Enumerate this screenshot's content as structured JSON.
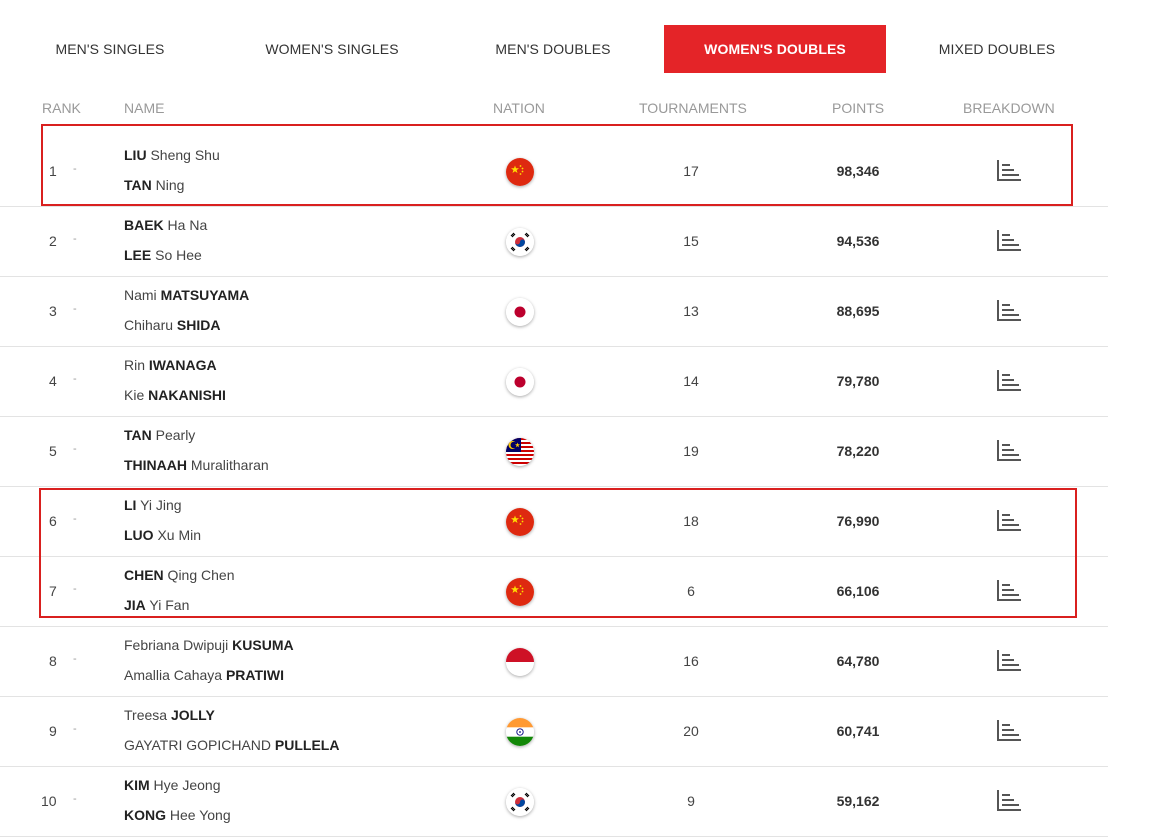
{
  "tabs": [
    {
      "label": "MEN'S SINGLES",
      "active": false
    },
    {
      "label": "WOMEN'S SINGLES",
      "active": false
    },
    {
      "label": "MEN'S DOUBLES",
      "active": false
    },
    {
      "label": "WOMEN'S DOUBLES",
      "active": true
    },
    {
      "label": "MIXED DOUBLES",
      "active": false
    }
  ],
  "columns": {
    "rank": "RANK",
    "name": "NAME",
    "nation": "NATION",
    "tournaments": "TOURNAMENTS",
    "points": "POINTS",
    "breakdown": "BREAKDOWN"
  },
  "colors": {
    "accent": "#e42428",
    "highlight": "#d9201f"
  },
  "rows": [
    {
      "rank": "1",
      "change": "-",
      "nation_icon": "china-flag-icon",
      "tournaments": "17",
      "points": "98,346",
      "players": [
        {
          "pre": "",
          "bold": "LIU",
          "post": " Sheng Shu"
        },
        {
          "pre": "",
          "bold": "TAN",
          "post": " Ning"
        }
      ]
    },
    {
      "rank": "2",
      "change": "-",
      "nation_icon": "korea-flag-icon",
      "tournaments": "15",
      "points": "94,536",
      "players": [
        {
          "pre": "",
          "bold": "BAEK",
          "post": " Ha Na"
        },
        {
          "pre": "",
          "bold": "LEE",
          "post": " So Hee"
        }
      ]
    },
    {
      "rank": "3",
      "change": "-",
      "nation_icon": "japan-flag-icon",
      "tournaments": "13",
      "points": "88,695",
      "players": [
        {
          "pre": "Nami ",
          "bold": "MATSUYAMA",
          "post": ""
        },
        {
          "pre": "Chiharu ",
          "bold": "SHIDA",
          "post": ""
        }
      ]
    },
    {
      "rank": "4",
      "change": "-",
      "nation_icon": "japan-flag-icon",
      "tournaments": "14",
      "points": "79,780",
      "players": [
        {
          "pre": "Rin ",
          "bold": "IWANAGA",
          "post": ""
        },
        {
          "pre": "Kie ",
          "bold": "NAKANISHI",
          "post": ""
        }
      ]
    },
    {
      "rank": "5",
      "change": "-",
      "nation_icon": "malaysia-flag-icon",
      "tournaments": "19",
      "points": "78,220",
      "players": [
        {
          "pre": "",
          "bold": "TAN",
          "post": " Pearly"
        },
        {
          "pre": "",
          "bold": "THINAAH",
          "post": " Muralitharan"
        }
      ]
    },
    {
      "rank": "6",
      "change": "-",
      "nation_icon": "china-flag-icon",
      "tournaments": "18",
      "points": "76,990",
      "players": [
        {
          "pre": "",
          "bold": "LI",
          "post": " Yi Jing"
        },
        {
          "pre": "",
          "bold": "LUO",
          "post": " Xu Min"
        }
      ]
    },
    {
      "rank": "7",
      "change": "-",
      "nation_icon": "china-flag-icon",
      "tournaments": "6",
      "points": "66,106",
      "players": [
        {
          "pre": "",
          "bold": "CHEN",
          "post": " Qing Chen"
        },
        {
          "pre": "",
          "bold": "JIA",
          "post": " Yi Fan"
        }
      ]
    },
    {
      "rank": "8",
      "change": "-",
      "nation_icon": "indonesia-flag-icon",
      "tournaments": "16",
      "points": "64,780",
      "players": [
        {
          "pre": "Febriana Dwipuji ",
          "bold": "KUSUMA",
          "post": ""
        },
        {
          "pre": "Amallia Cahaya ",
          "bold": "PRATIWI",
          "post": ""
        }
      ]
    },
    {
      "rank": "9",
      "change": "-",
      "nation_icon": "india-flag-icon",
      "tournaments": "20",
      "points": "60,741",
      "players": [
        {
          "pre": "Treesa ",
          "bold": "JOLLY",
          "post": ""
        },
        {
          "pre": "GAYATRI GOPICHAND ",
          "bold": "PULLELA",
          "post": ""
        }
      ]
    },
    {
      "rank": "10",
      "change": "-",
      "nation_icon": "korea-flag-icon",
      "tournaments": "9",
      "points": "59,162",
      "players": [
        {
          "pre": "",
          "bold": "KIM",
          "post": " Hye Jeong"
        },
        {
          "pre": "",
          "bold": "KONG",
          "post": " Hee Yong"
        }
      ]
    }
  ]
}
